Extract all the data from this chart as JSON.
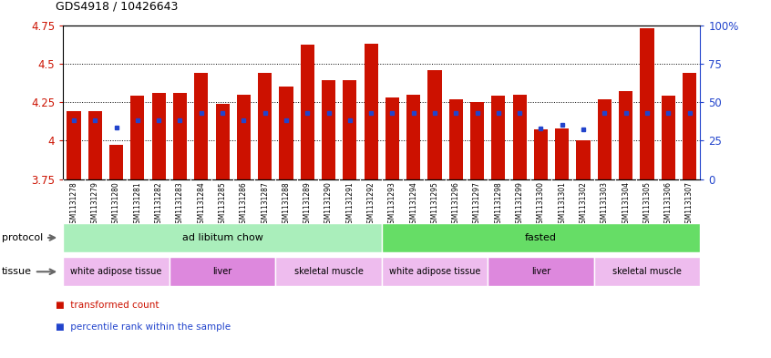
{
  "title": "GDS4918 / 10426643",
  "samples": [
    "GSM1131278",
    "GSM1131279",
    "GSM1131280",
    "GSM1131281",
    "GSM1131282",
    "GSM1131283",
    "GSM1131284",
    "GSM1131285",
    "GSM1131286",
    "GSM1131287",
    "GSM1131288",
    "GSM1131289",
    "GSM1131290",
    "GSM1131291",
    "GSM1131292",
    "GSM1131293",
    "GSM1131294",
    "GSM1131295",
    "GSM1131296",
    "GSM1131297",
    "GSM1131298",
    "GSM1131299",
    "GSM1131300",
    "GSM1131301",
    "GSM1131302",
    "GSM1131303",
    "GSM1131304",
    "GSM1131305",
    "GSM1131306",
    "GSM1131307"
  ],
  "bar_tops": [
    4.19,
    4.19,
    3.97,
    4.29,
    4.31,
    4.31,
    4.44,
    4.24,
    4.3,
    4.44,
    4.35,
    4.62,
    4.39,
    4.39,
    4.63,
    4.28,
    4.3,
    4.46,
    4.27,
    4.25,
    4.29,
    4.3,
    4.07,
    4.08,
    4.0,
    4.27,
    4.32,
    4.73,
    4.29,
    4.44
  ],
  "blue_dot_y": [
    4.13,
    4.13,
    4.085,
    4.13,
    4.13,
    4.13,
    4.18,
    4.18,
    4.13,
    4.18,
    4.13,
    4.18,
    4.18,
    4.13,
    4.18,
    4.18,
    4.18,
    4.18,
    4.18,
    4.18,
    4.18,
    4.18,
    4.08,
    4.1,
    4.07,
    4.18,
    4.18,
    4.18,
    4.18,
    4.18
  ],
  "ylim_left": [
    3.75,
    4.75
  ],
  "ylim_right": [
    0,
    100
  ],
  "yticks_left": [
    3.75,
    4.0,
    4.25,
    4.5,
    4.75
  ],
  "yticks_right": [
    0,
    25,
    50,
    75,
    100
  ],
  "ytick_labels_left": [
    "3.75",
    "4",
    "4.25",
    "4.5",
    "4.75"
  ],
  "ytick_labels_right": [
    "0",
    "25",
    "50",
    "75",
    "100%"
  ],
  "bar_color": "#cc1100",
  "dot_color": "#2244cc",
  "protocol_groups": [
    {
      "label": "ad libitum chow",
      "start": 0,
      "end": 14,
      "color": "#aaeebb"
    },
    {
      "label": "fasted",
      "start": 15,
      "end": 29,
      "color": "#66dd66"
    }
  ],
  "tissue_groups": [
    {
      "label": "white adipose tissue",
      "start": 0,
      "end": 4,
      "color": "#eebcee"
    },
    {
      "label": "liver",
      "start": 5,
      "end": 9,
      "color": "#dd88dd"
    },
    {
      "label": "skeletal muscle",
      "start": 10,
      "end": 14,
      "color": "#eebcee"
    },
    {
      "label": "white adipose tissue",
      "start": 15,
      "end": 19,
      "color": "#eebcee"
    },
    {
      "label": "liver",
      "start": 20,
      "end": 24,
      "color": "#dd88dd"
    },
    {
      "label": "skeletal muscle",
      "start": 25,
      "end": 29,
      "color": "#eebcee"
    }
  ],
  "xtick_bg_color": "#dddddd",
  "label_color_protocol": "#555555",
  "label_color_tissue": "#555555"
}
